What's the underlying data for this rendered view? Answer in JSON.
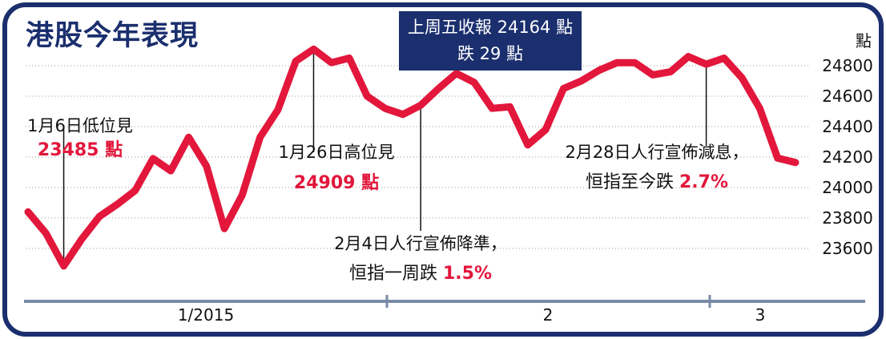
{
  "colors": {
    "frame": "#1b2f6e",
    "line": "#e2173b",
    "highlight": "#e2173b",
    "infobox_bg": "#1b2f6e",
    "infobox_text": "#ffffff",
    "grid": "#999999",
    "text": "#111111"
  },
  "infobox": {
    "line1": "上周五收報 24164 點",
    "line2": "跌 29 點"
  },
  "chart_data": {
    "type": "line",
    "title": "港股今年表現",
    "ylabel": "點",
    "ylim": [
      23450,
      24950
    ],
    "y_ticks": [
      23600,
      23800,
      24000,
      24200,
      24400,
      24600,
      24800
    ],
    "x_labels": [
      "1/2015",
      "2",
      "3"
    ],
    "grid": true,
    "series": [
      {
        "values": [
          23840,
          23700,
          23485,
          23660,
          23810,
          23890,
          23980,
          24190,
          24110,
          24330,
          24140,
          23730,
          23950,
          24330,
          24510,
          24830,
          24909,
          24820,
          24850,
          24600,
          24520,
          24480,
          24540,
          24650,
          24750,
          24690,
          24520,
          24530,
          24280,
          24380,
          24650,
          24700,
          24770,
          24820,
          24820,
          24740,
          24760,
          24860,
          24810,
          24850,
          24720,
          24520,
          24193,
          24164
        ]
      }
    ],
    "annotations": [
      {
        "point_index": 2,
        "text": "1月6日低位見",
        "value_text": "23485 點"
      },
      {
        "point_index": 16,
        "text": "1月26日高位見",
        "value_text": "24909 點"
      },
      {
        "point_index": 22,
        "text": "2月4日人行宣佈降準，",
        "text2_prefix": "恒指一周跌 ",
        "value_text": "1.5%"
      },
      {
        "point_index": 38,
        "text": "2月28日人行宣佈減息，",
        "text2_prefix": "恒指至今跌 ",
        "value_text": "2.7%"
      }
    ]
  }
}
